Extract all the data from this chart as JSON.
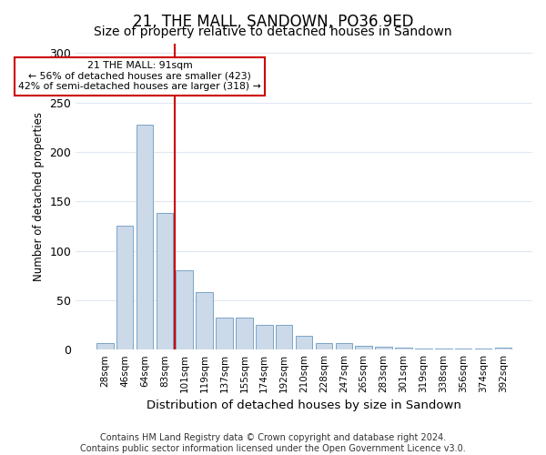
{
  "title": "21, THE MALL, SANDOWN, PO36 9ED",
  "subtitle": "Size of property relative to detached houses in Sandown",
  "xlabel": "Distribution of detached houses by size in Sandown",
  "ylabel": "Number of detached properties",
  "categories": [
    "28sqm",
    "46sqm",
    "64sqm",
    "83sqm",
    "101sqm",
    "119sqm",
    "137sqm",
    "155sqm",
    "174sqm",
    "192sqm",
    "210sqm",
    "228sqm",
    "247sqm",
    "265sqm",
    "283sqm",
    "301sqm",
    "319sqm",
    "338sqm",
    "356sqm",
    "374sqm",
    "392sqm"
  ],
  "values": [
    7,
    125,
    228,
    138,
    80,
    58,
    32,
    32,
    25,
    25,
    14,
    7,
    7,
    4,
    3,
    2,
    1,
    1,
    1,
    1,
    2
  ],
  "bar_color": "#ccd9e8",
  "bar_edge_color": "#7aa4c8",
  "vline_color": "#cc0000",
  "vline_x_index": 3.5,
  "annotation_text": "21 THE MALL: 91sqm\n← 56% of detached houses are smaller (423)\n42% of semi-detached houses are larger (318) →",
  "annotation_box_color": "#ffffff",
  "annotation_box_edge": "#cc0000",
  "footer": "Contains HM Land Registry data © Crown copyright and database right 2024.\nContains public sector information licensed under the Open Government Licence v3.0.",
  "ylim": [
    0,
    310
  ],
  "yticks": [
    0,
    50,
    100,
    150,
    200,
    250,
    300
  ],
  "title_fontsize": 12,
  "subtitle_fontsize": 10,
  "xlabel_fontsize": 9.5,
  "ylabel_fontsize": 8.5,
  "footer_fontsize": 7,
  "bg_color": "#ffffff",
  "plot_bg_color": "#ffffff",
  "grid_color": "#e0e8f0"
}
